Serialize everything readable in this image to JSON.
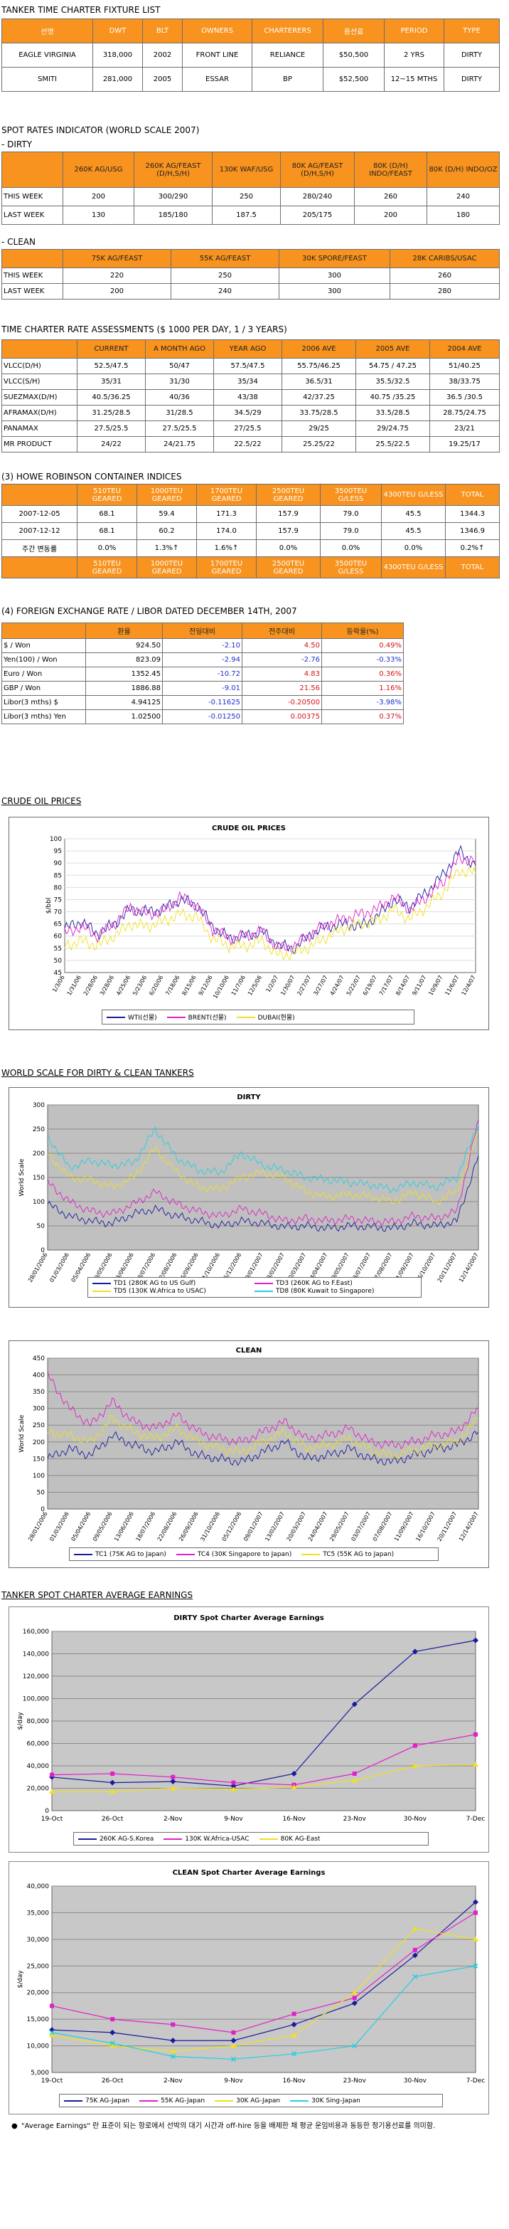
{
  "fixture": {
    "title": "TANKER TIME CHARTER FIXTURE LIST",
    "headers": [
      "선명",
      "DWT",
      "BLT",
      "OWNERS",
      "CHARTERERS",
      "용선료",
      "PERIOD",
      "TYPE"
    ],
    "rows": [
      [
        "EAGLE VIRGINIA",
        "318,000",
        "2002",
        "FRONT LINE",
        "RELIANCE",
        "$50,500",
        "2 YRS",
        "DIRTY"
      ],
      [
        "SMITI",
        "281,000",
        "2005",
        "ESSAR",
        "BP",
        "$52,500",
        "12~15 MTHS",
        "DIRTY"
      ]
    ]
  },
  "spot": {
    "title": "SPOT RATES INDICATOR (WORLD SCALE 2007)",
    "dirty_label": "- DIRTY",
    "dirty_headers": [
      "",
      "260K AG/USG",
      "260K AG/FEAST (D/H,S/H)",
      "130K WAF/USG",
      "80K AG/FEAST (D/H,S/H)",
      "80K (D/H) INDO/FEAST",
      "80K (D/H) INDO/OZ"
    ],
    "dirty_rows": [
      [
        "THIS WEEK",
        "200",
        "300/290",
        "250",
        "280/240",
        "260",
        "240"
      ],
      [
        "LAST WEEK",
        "130",
        "185/180",
        "187.5",
        "205/175",
        "200",
        "180"
      ]
    ],
    "clean_label": "- CLEAN",
    "clean_headers": [
      "",
      "75K AG/FEAST",
      "55K AG/FEAST",
      "30K SPORE/FEAST",
      "28K CARIBS/USAC"
    ],
    "clean_rows": [
      [
        "THIS WEEK",
        "220",
        "250",
        "300",
        "260"
      ],
      [
        "LAST WEEK",
        "200",
        "240",
        "300",
        "280"
      ]
    ]
  },
  "tc": {
    "title": "TIME CHARTER RATE ASSESSMENTS ($ 1000 PER DAY, 1 / 3 YEARS)",
    "headers": [
      "",
      "CURRENT",
      "A MONTH AGO",
      "YEAR AGO",
      "2006 AVE",
      "2005 AVE",
      "2004 AVE"
    ],
    "rows": [
      [
        "VLCC(D/H)",
        "52.5/47.5",
        "50/47",
        "57.5/47.5",
        "55.75/46.25",
        "54.75 / 47.25",
        "51/40.25"
      ],
      [
        "VLCC(S/H)",
        "35/31",
        "31/30",
        "35/34",
        "36.5/31",
        "35.5/32.5",
        "38/33.75"
      ],
      [
        "SUEZMAX(D/H)",
        "40.5/36.25",
        "40/36",
        "43/38",
        "42/37.25",
        "40.75 /35.25",
        "36.5 /30.5"
      ],
      [
        "AFRAMAX(D/H)",
        "31.25/28.5",
        "31/28.5",
        "34.5/29",
        "33.75/28.5",
        "33.5/28.5",
        "28.75/24.75"
      ],
      [
        "PANAMAX",
        "27.5/25.5",
        "27.5/25.5",
        "27/25.5",
        "29/25",
        "29/24.75",
        "23/21"
      ],
      [
        "MR PRODUCT",
        "24/22",
        "24/21.75",
        "22.5/22",
        "25.25/22",
        "25.5/22.5",
        "19.25/17"
      ]
    ]
  },
  "howe": {
    "title": "(3) HOWE ROBINSON CONTAINER INDICES",
    "headers": [
      "",
      "510TEU GEARED",
      "1000TEU GEARED",
      "1700TEU GEARED",
      "2500TEU GEARED",
      "3500TEU G/LESS",
      "4300TEU G/LESS",
      "TOTAL"
    ],
    "rows": [
      [
        "2007-12-05",
        "68.1",
        "59.4",
        "171.3",
        "157.9",
        "79.0",
        "45.5",
        "1344.3"
      ],
      [
        "2007-12-12",
        "68.1",
        "60.2",
        "174.0",
        "157.9",
        "79.0",
        "45.5",
        "1346.9"
      ],
      [
        "주간 변동률",
        "0.0%",
        "1.3%↑",
        "1.6%↑",
        "0.0%",
        "0.0%",
        "0.0%",
        "0.2%↑"
      ]
    ]
  },
  "fx": {
    "title": "(4) FOREIGN EXCHANGE RATE / LIBOR DATED DECEMBER 14TH, 2007",
    "headers": [
      "",
      "환율",
      "전일대비",
      "전주대비",
      "등락율(%)"
    ],
    "rows": [
      [
        "$ / Won",
        "924.50",
        "-2.10",
        "4.50",
        "0.49%"
      ],
      [
        "Yen(100) / Won",
        "823.09",
        "-2.94",
        "-2.76",
        "-0.33%"
      ],
      [
        "Euro / Won",
        "1352.45",
        "-10.72",
        "4.83",
        "0.36%"
      ],
      [
        "GBP / Won",
        "1886.88",
        "-9.01",
        "21.56",
        "1.16%"
      ],
      [
        "Libor(3 mths) $",
        "4.94125",
        "-0.11625",
        "-0.20500",
        "-3.98%"
      ],
      [
        "Libor(3 mths) Yen",
        "1.02500",
        "-0.01250",
        "0.00375",
        "0.37%"
      ]
    ],
    "colors": [
      [
        "",
        "",
        "blue",
        "red",
        "red"
      ],
      [
        "",
        "",
        "blue",
        "blue",
        "blue"
      ],
      [
        "",
        "",
        "blue",
        "red",
        "red"
      ],
      [
        "",
        "",
        "blue",
        "red",
        "red"
      ],
      [
        "",
        "",
        "blue",
        "red",
        "blue"
      ],
      [
        "",
        "",
        "blue",
        "red",
        "red"
      ]
    ]
  },
  "crude_section": {
    "title": "CRUDE OIL PRICES"
  },
  "ws_section": {
    "title": "WORLD SCALE FOR DIRTY & CLEAN TANKERS"
  },
  "spot_avg_section": {
    "title": "TANKER SPOT CHARTER AVERAGE EARNINGS"
  },
  "note": {
    "bullet": "●",
    "text": "\"Average Earnings\" 란 표준이 되는 항로에서 선박의 대기 시간과 off-hire 등을 배제한 채 평균 운임비용과 동등한 정기용선료를 의미함."
  },
  "chart_data": [
    {
      "id": "crude",
      "type": "line",
      "title": "CRUDE OIL PRICES",
      "ylabel": "$/bbl",
      "ylim": [
        45,
        100
      ],
      "yticks": [
        45,
        50,
        55,
        60,
        65,
        70,
        75,
        80,
        85,
        90,
        95,
        100
      ],
      "x": [
        "1/3/06",
        "1/31/06",
        "2/28/06",
        "3/28/06",
        "4/25/06",
        "5/23/06",
        "6/20/06",
        "7/18/06",
        "8/15/06",
        "9/12/06",
        "10/10/06",
        "11/7/06",
        "12/5/06",
        "1/2/07",
        "1/30/07",
        "2/27/07",
        "3/27/07",
        "4/24/07",
        "5/22/07",
        "6/19/07",
        "7/17/07",
        "8/14/07",
        "9/11/07",
        "10/9/07",
        "11/6/07",
        "12/4/07"
      ],
      "series": [
        {
          "name": "WTI(선물)",
          "color": "#1a1a9c",
          "values": [
            63,
            66,
            61,
            65,
            71,
            70,
            71,
            75,
            73,
            64,
            59,
            60,
            62,
            56,
            55,
            61,
            64,
            65,
            64,
            68,
            75,
            72,
            78,
            85,
            95,
            89
          ]
        },
        {
          "name": "BRENT(선물)",
          "color": "#e020c8",
          "values": [
            61,
            64,
            60,
            65,
            72,
            69,
            70,
            76,
            73,
            63,
            59,
            60,
            62,
            55,
            56,
            61,
            65,
            67,
            69,
            71,
            76,
            71,
            76,
            82,
            92,
            91
          ]
        },
        {
          "name": "DUBAI(현물)",
          "color": "#f0e020",
          "values": [
            56,
            58,
            56,
            60,
            65,
            64,
            66,
            69,
            68,
            59,
            56,
            56,
            58,
            52,
            53,
            56,
            60,
            63,
            65,
            66,
            71,
            67,
            72,
            78,
            87,
            86
          ]
        }
      ]
    },
    {
      "id": "dirty",
      "type": "line",
      "title": "DIRTY",
      "ylabel": "World Scale",
      "ylim": [
        0,
        300
      ],
      "yticks": [
        0,
        50,
        100,
        150,
        200,
        250,
        300
      ],
      "x": [
        "28/01/2006",
        "01/03/2006",
        "05/04/2006",
        "09/05/2006",
        "13/06/2006",
        "18/07/2006",
        "22/08/2006",
        "26/09/2006",
        "31/10/2006",
        "05/12/2006",
        "09/01/2007",
        "13/02/2007",
        "20/03/2007",
        "24/04/2007",
        "29/05/2007",
        "03/07/2007",
        "07/08/2007",
        "11/09/2007",
        "16/10/2007",
        "20/11/2007",
        "12/14/2007"
      ],
      "series": [
        {
          "name": "TD1 (280K AG to US Gulf)",
          "color": "#1a1a9c",
          "values": [
            95,
            70,
            60,
            55,
            75,
            85,
            70,
            60,
            50,
            60,
            55,
            48,
            50,
            45,
            50,
            48,
            45,
            55,
            50,
            60,
            195
          ]
        },
        {
          "name": "TD3 (260K AG to F.East)",
          "color": "#e020c8",
          "values": [
            140,
            100,
            80,
            75,
            95,
            120,
            95,
            80,
            70,
            85,
            75,
            60,
            65,
            60,
            65,
            60,
            58,
            70,
            65,
            80,
            270
          ]
        },
        {
          "name": "TD5 (130K W.Africa to USAC)",
          "color": "#f0e020",
          "values": [
            200,
            150,
            145,
            130,
            150,
            210,
            160,
            130,
            125,
            150,
            160,
            150,
            120,
            110,
            115,
            110,
            100,
            120,
            100,
            120,
            245
          ]
        },
        {
          "name": "TD8 (80K Kuwait to Singapore)",
          "color": "#20d0e0",
          "values": [
            235,
            170,
            185,
            175,
            180,
            250,
            190,
            165,
            160,
            200,
            175,
            165,
            150,
            145,
            140,
            135,
            125,
            140,
            130,
            150,
            260
          ]
        }
      ]
    },
    {
      "id": "clean",
      "type": "line",
      "title": "CLEAN",
      "ylabel": "World Scale",
      "ylim": [
        0,
        450
      ],
      "yticks": [
        0,
        50,
        100,
        150,
        200,
        250,
        300,
        350,
        400,
        450
      ],
      "x": [
        "28/01/2006",
        "01/03/2006",
        "05/04/2006",
        "09/05/2006",
        "13/06/2006",
        "18/07/2006",
        "22/08/2006",
        "26/09/2006",
        "31/10/2006",
        "05/12/2006",
        "09/01/2007",
        "13/02/2007",
        "20/03/2007",
        "24/04/2007",
        "29/05/2007",
        "03/07/2007",
        "07/08/2007",
        "11/09/2007",
        "16/10/2007",
        "20/11/2007",
        "12/14/2007"
      ],
      "series": [
        {
          "name": "TC1 (75K AG to Japan)",
          "color": "#1a1a9c",
          "values": [
            150,
            180,
            160,
            220,
            190,
            170,
            200,
            160,
            150,
            140,
            170,
            200,
            150,
            160,
            180,
            150,
            140,
            160,
            180,
            190,
            230
          ]
        },
        {
          "name": "TC4 (30K Singapore to Japan)",
          "color": "#e020c8",
          "values": [
            400,
            300,
            250,
            320,
            260,
            240,
            280,
            230,
            210,
            200,
            230,
            260,
            210,
            220,
            240,
            200,
            190,
            200,
            220,
            230,
            300
          ]
        },
        {
          "name": "TC5 (55K AG to Japan)",
          "color": "#f0e020",
          "values": [
            230,
            220,
            200,
            270,
            230,
            210,
            240,
            200,
            180,
            170,
            200,
            230,
            180,
            190,
            210,
            175,
            160,
            175,
            190,
            200,
            270
          ]
        }
      ]
    },
    {
      "id": "dirty_earn",
      "type": "line",
      "title": "DIRTY Spot Charter Average Earnings",
      "ylabel": "$/day",
      "ylim": [
        0,
        160000
      ],
      "yticks": [
        0,
        20000,
        40000,
        60000,
        80000,
        100000,
        120000,
        140000,
        160000
      ],
      "ytick_labels": [
        "0",
        "20,000",
        "40,000",
        "60,000",
        "80,000",
        "100,000",
        "120,000",
        "140,000",
        "160,000"
      ],
      "x": [
        "19-Oct",
        "26-Oct",
        "2-Nov",
        "9-Nov",
        "16-Nov",
        "23-Nov",
        "30-Nov",
        "7-Dec"
      ],
      "series": [
        {
          "name": "260K AG-S.Korea",
          "color": "#1a1a9c",
          "marker": "diamond",
          "values": [
            30000,
            25000,
            26000,
            22000,
            33000,
            95000,
            142000,
            152000
          ]
        },
        {
          "name": "130K W.Africa-USAC",
          "color": "#e020c8",
          "marker": "square",
          "values": [
            32000,
            33000,
            30000,
            25000,
            23000,
            33000,
            58000,
            68000
          ]
        },
        {
          "name": "80K AG-East",
          "color": "#f0e020",
          "marker": "triangle",
          "values": [
            17000,
            17000,
            20000,
            19000,
            21000,
            27000,
            40000,
            41000
          ]
        }
      ]
    },
    {
      "id": "clean_earn",
      "type": "line",
      "title": "CLEAN Spot Charter Average Earnings",
      "ylabel": "$/day",
      "ylim": [
        5000,
        40000
      ],
      "yticks": [
        5000,
        10000,
        15000,
        20000,
        25000,
        30000,
        35000,
        40000
      ],
      "ytick_labels": [
        "5,000",
        "10,000",
        "15,000",
        "20,000",
        "25,000",
        "30,000",
        "35,000",
        "40,000"
      ],
      "x": [
        "19-Oct",
        "26-Oct",
        "2-Nov",
        "9-Nov",
        "16-Nov",
        "23-Nov",
        "30-Nov",
        "7-Dec"
      ],
      "series": [
        {
          "name": "75K AG-Japan",
          "color": "#1a1a9c",
          "marker": "diamond",
          "values": [
            13000,
            12500,
            11000,
            11000,
            14000,
            18000,
            27000,
            37000
          ]
        },
        {
          "name": "55K AG-Japan",
          "color": "#e020c8",
          "marker": "square",
          "values": [
            17500,
            15000,
            14000,
            12500,
            16000,
            19000,
            28000,
            35000
          ]
        },
        {
          "name": "30K AG-Japan",
          "color": "#f0e020",
          "marker": "triangle",
          "values": [
            12000,
            10000,
            9000,
            10000,
            12000,
            20000,
            32000,
            30000
          ]
        },
        {
          "name": "30K Sing-Japan",
          "color": "#20d0e0",
          "marker": "x",
          "values": [
            12500,
            10500,
            8000,
            7500,
            8500,
            10000,
            23000,
            25000
          ]
        }
      ]
    }
  ]
}
